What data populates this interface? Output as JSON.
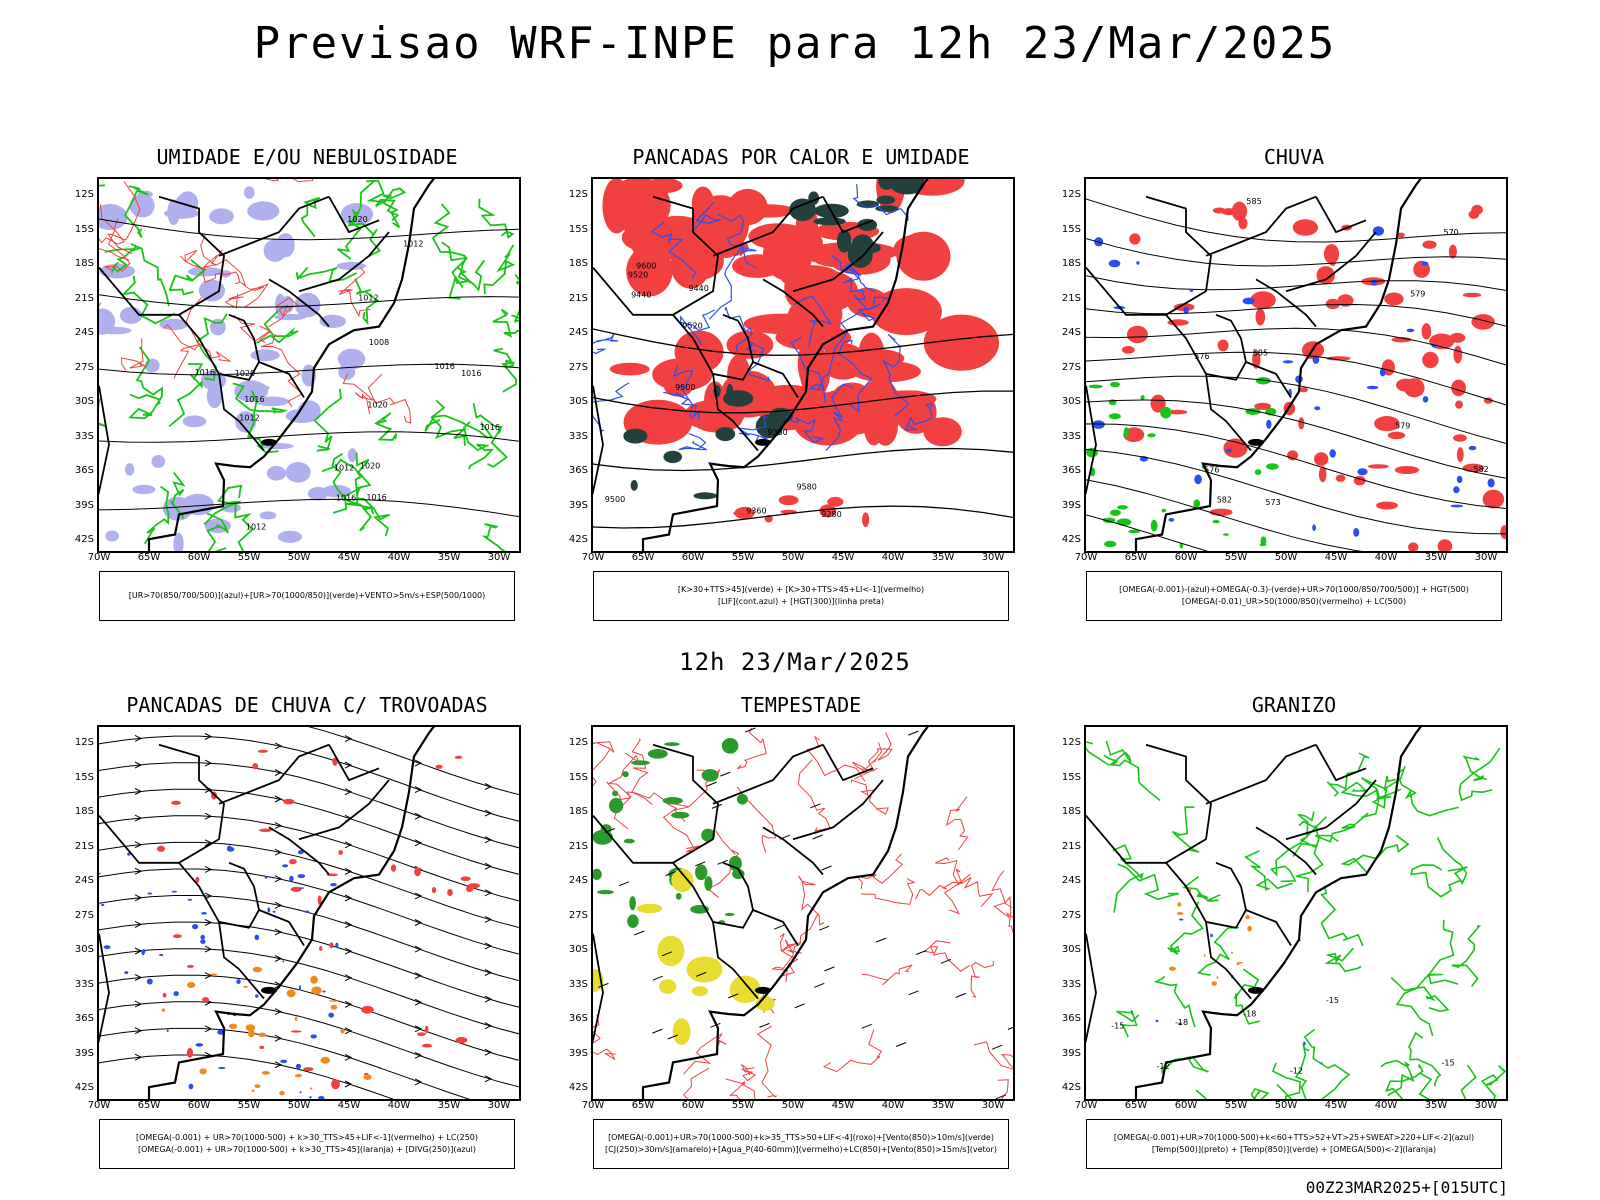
{
  "title": "Previsao WRF-INPE  para 12h 23/Mar/2025",
  "middle_title": "12h 23/Mar/2025",
  "footer": "00Z23MAR2025+[015UTC]",
  "lat_labels": [
    "12S",
    "15S",
    "18S",
    "21S",
    "24S",
    "27S",
    "30S",
    "33S",
    "36S",
    "39S",
    "42S"
  ],
  "lon_labels": [
    "70W",
    "65W",
    "60W",
    "55W",
    "50W",
    "45W",
    "40W",
    "35W",
    "30W"
  ],
  "colors": {
    "red": "#f24040",
    "green": "#18c418",
    "blue": "#2850f0",
    "lavender": "#b0b0ee",
    "darkteal": "#23403c",
    "yellow": "#e8dc30",
    "orange": "#f08a20"
  },
  "panels": [
    {
      "title": "UMIDADE E/OU NEBULOSIDADE",
      "legend": [
        "[UR>70(850/700/500)](azul)+[UR>70(1000/850)](verde)+VENTO>5m/s+ESP(500/1000)"
      ]
    },
    {
      "title": "PANCADAS POR CALOR E UMIDADE",
      "legend": [
        "[K>30+TTS>45](verde) + [K>30+TTS>45+LI<-1](vermelho)",
        "[LIF](cont.azul) + [HGT(300)](linha preta)"
      ]
    },
    {
      "title": "CHUVA",
      "legend": [
        "[OMEGA(-0.001)-(azul)+OMEGA(-0.3)-(verde)+UR>70(1000/850/700/500)] + HGT(500)",
        "[OMEGA(-0.01)_UR>50(1000/850)(vermelho) + LC(500)"
      ]
    },
    {
      "title": "PANCADAS DE CHUVA C/ TROVOADAS",
      "legend": [
        "[OMEGA(-0.001) + UR>70(1000-500) + k>30_TTS>45+LIF<-1](vermelho) + LC(250)",
        "[OMEGA(-0.001) + UR>70(1000-500) + k>30_TTS>45](laranja) + [DIVG(250)](azul)"
      ]
    },
    {
      "title": "TEMPESTADE",
      "legend": [
        "[OMEGA(-0.001)+UR>70(1000-500)+k>35_TTS>50+LIF<-4](roxo)+[Vento(850)>10m/s](verde)",
        "[CJ(250)>30m/s](amarelo)+[Agua_P(40-60mm)](vermelho)+LC(850)+[Vento(850)>15m/s](vetor)"
      ]
    },
    {
      "title": "GRANIZO",
      "legend": [
        "[OMEGA(-0.001)+UR>70(1000-500)+k<60+TTS>52+VT>25+SWEAT>220+LIF<-2](azul)",
        "[Temp(500)](preto) + [Temp(850)](verde) + [OMEGA(500)<-2](laranja)"
      ]
    }
  ],
  "contour_labels": {
    "p1": [
      "1012",
      "1012",
      "1012",
      "1016",
      "1016",
      "1016",
      "1012",
      "1008",
      "1012",
      "1020",
      "1020",
      "1016",
      "1016",
      "1020",
      "1016",
      "1020",
      "1016"
    ],
    "p2": [
      "9580",
      "9600",
      "9520",
      "9500",
      "9500",
      "9520",
      "9440",
      "9360",
      "9280",
      "9440",
      "9360"
    ],
    "p3": [
      "585",
      "585",
      "582",
      "579",
      "576",
      "573",
      "570",
      "576",
      "579",
      "582"
    ],
    "p6": [
      "-12",
      "-15",
      "-18",
      "-15",
      "-12",
      "-15",
      "-18"
    ]
  }
}
